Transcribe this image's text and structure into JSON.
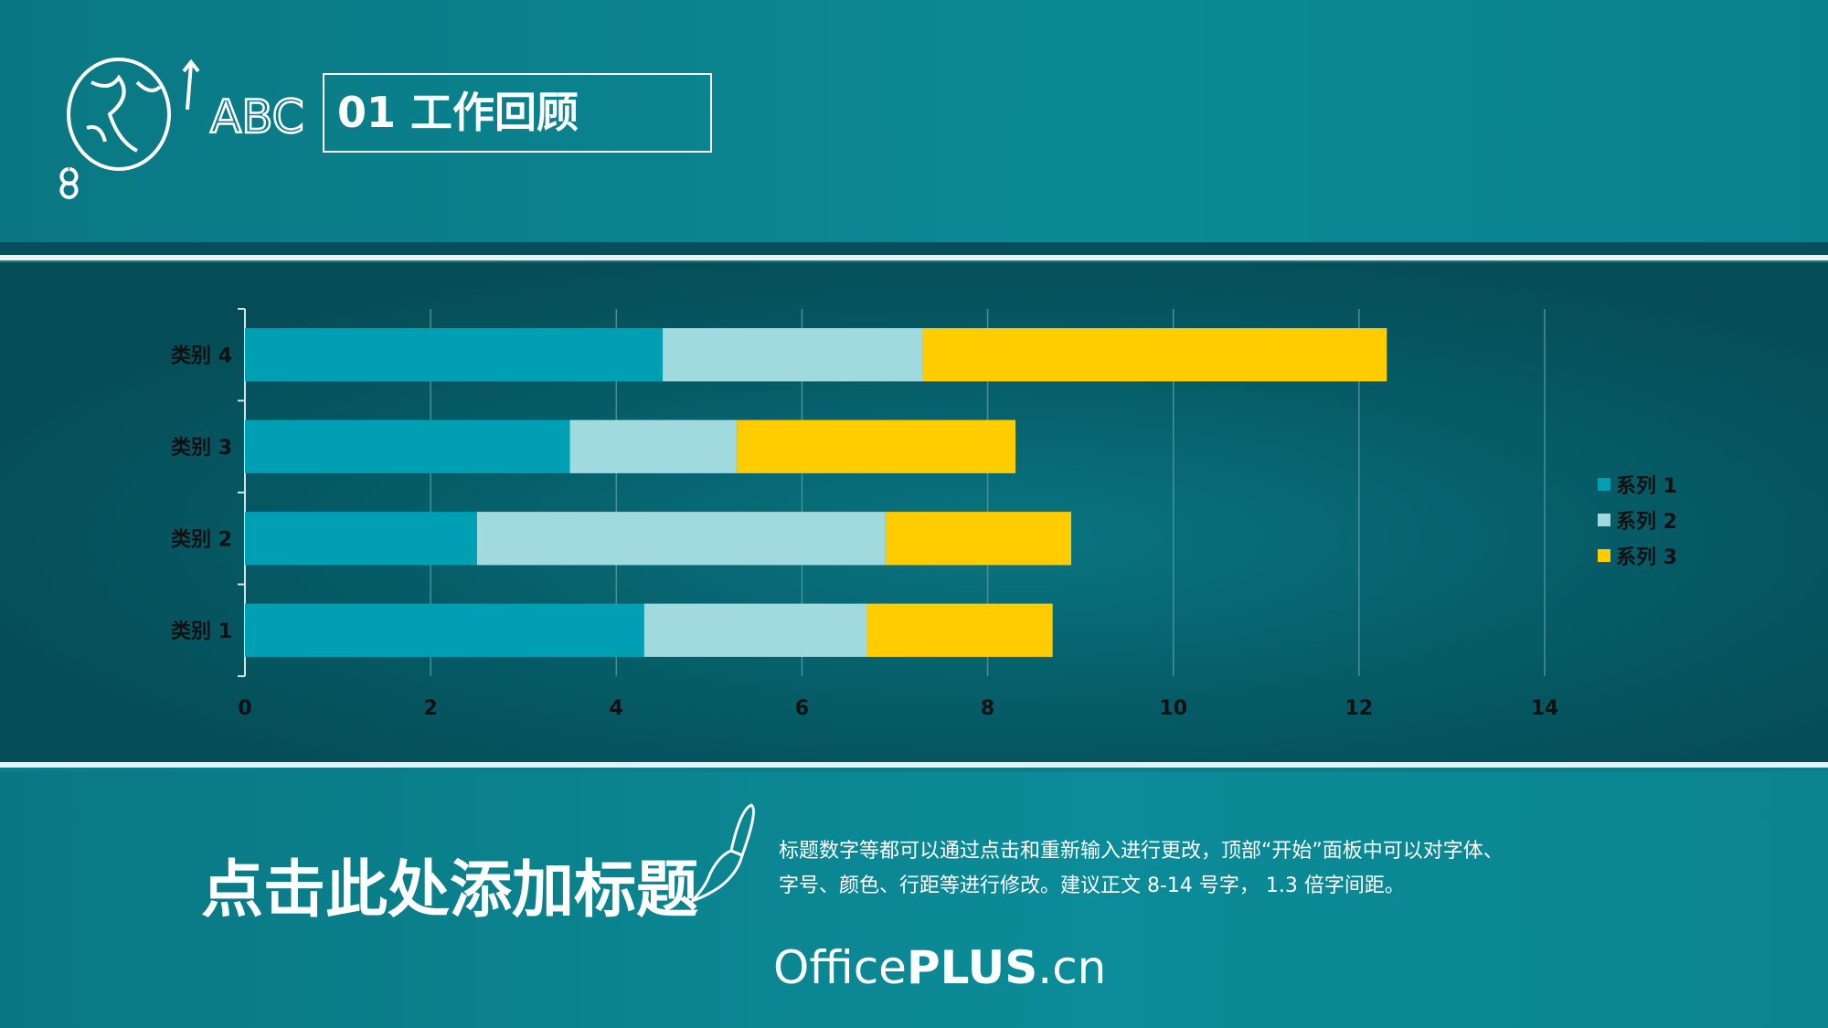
{
  "header": {
    "title": "01  工作回顾"
  },
  "footer": {
    "title": "点击此处添加标题",
    "paragraph_lines": [
      "标题数字等都可以通过点击和重新输入进行更改，顶部“开始”面板中可以对字体、",
      "字号、颜色、行距等进行修改。建议正文 8-14 号字， 1.3 倍字间距。"
    ],
    "brand_light": "Office",
    "brand_bold": "PLUS",
    ".cn": ".cn"
  },
  "chart_data": {
    "type": "bar",
    "orientation": "horizontal",
    "stacked": true,
    "categories": [
      "类别 1",
      "类别 2",
      "类别 3",
      "类别 4"
    ],
    "series": [
      {
        "name": "系列 1",
        "values": [
          4.3,
          2.5,
          3.5,
          4.5
        ],
        "color": "#009fb3"
      },
      {
        "name": "系列 2",
        "values": [
          2.4,
          4.4,
          1.8,
          2.8
        ],
        "color": "#a0d9de"
      },
      {
        "name": "系列 3",
        "values": [
          2,
          2,
          3,
          5
        ],
        "color": "#ffcc00"
      }
    ],
    "xlim": [
      0,
      14
    ],
    "xticks": [
      "0",
      "2",
      "4",
      "6",
      "8",
      "10",
      "12",
      "14"
    ],
    "grid": true,
    "legend": "right"
  }
}
